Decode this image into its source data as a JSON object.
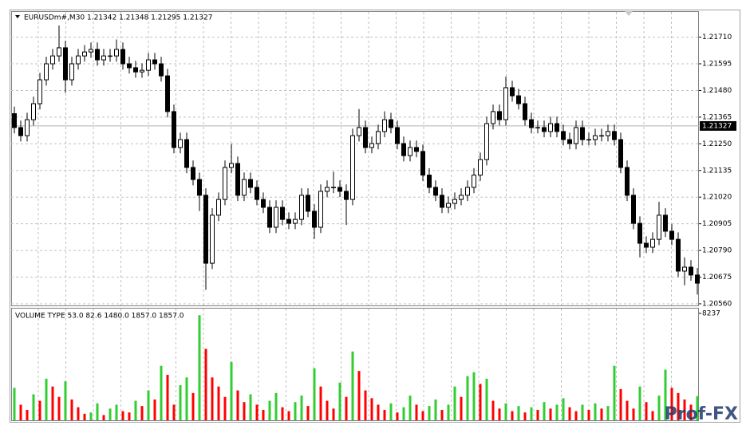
{
  "chart_data": [
    {
      "type": "candlestick",
      "title": "EURUSDm#,M30  1.21342 1.21348 1.21295 1.21327",
      "open": [
        1.2138,
        1.2132,
        1.21285,
        1.21354,
        1.21423,
        1.21526,
        1.21595,
        1.21629,
        1.21664,
        1.21526,
        1.21595,
        1.21629,
        1.21646,
        1.21657,
        1.21612,
        1.21629,
        1.21629,
        1.21657,
        1.21595,
        1.21578,
        1.2156,
        1.21567,
        1.21612,
        1.21595,
        1.21543,
        1.21389,
        1.21234,
        1.21268,
        1.21148,
        1.21096,
        1.21028,
        1.20735,
        1.20942,
        1.2101,
        1.21148,
        1.21165,
        1.21028,
        1.21096,
        1.21062,
        1.2101,
        1.20976,
        1.2089,
        1.20976,
        1.20924,
        1.20907,
        1.20924,
        1.21028,
        1.20959,
        1.2089,
        1.21045,
        1.21062,
        1.21062,
        1.21045,
        1.2101,
        1.21285,
        1.2132,
        1.21234,
        1.21251,
        1.21303,
        1.21354,
        1.2132,
        1.21251,
        1.21199,
        1.21234,
        1.21217,
        1.21115,
        1.21062,
        1.21028,
        1.20976,
        1.20993,
        1.2101,
        1.21028,
        1.21062,
        1.21115,
        1.21182,
        1.21337,
        1.21389,
        1.21354,
        1.21492,
        1.21457,
        1.21423,
        1.21354,
        1.2132,
        1.2132,
        1.21303,
        1.21337,
        1.21303,
        1.21268,
        1.21251,
        1.2132,
        1.21268,
        1.21268,
        1.21285,
        1.21285,
        1.21303,
        1.21268,
        1.21148,
        1.21028,
        1.20907,
        1.20821,
        1.20804,
        1.20838,
        1.20942,
        1.20873,
        1.20838,
        1.20701,
        1.20718,
        1.20684
      ],
      "high": [
        1.2141,
        1.2135,
        1.21384,
        1.21453,
        1.21556,
        1.21625,
        1.21659,
        1.2176,
        1.21694,
        1.21625,
        1.21659,
        1.21676,
        1.21687,
        1.21687,
        1.21659,
        1.21659,
        1.217,
        1.21687,
        1.21625,
        1.21608,
        1.21597,
        1.21642,
        1.21642,
        1.21625,
        1.21573,
        1.21419,
        1.21298,
        1.21298,
        1.21178,
        1.21126,
        1.21058,
        1.20972,
        1.2104,
        1.21178,
        1.2125,
        1.21195,
        1.21126,
        1.21126,
        1.21092,
        1.2104,
        1.21006,
        1.21006,
        1.21006,
        1.20954,
        1.20954,
        1.21058,
        1.21058,
        1.20989,
        1.21075,
        1.21092,
        1.2113,
        1.21092,
        1.21075,
        1.21315,
        1.214,
        1.2135,
        1.21281,
        1.21333,
        1.2139,
        1.21384,
        1.2135,
        1.21281,
        1.21264,
        1.21264,
        1.21247,
        1.21145,
        1.21092,
        1.21058,
        1.21023,
        1.2104,
        1.21058,
        1.21092,
        1.21145,
        1.21212,
        1.21367,
        1.21419,
        1.21419,
        1.2154,
        1.21522,
        1.21487,
        1.21453,
        1.21384,
        1.2135,
        1.2135,
        1.21367,
        1.21367,
        1.21333,
        1.21298,
        1.2135,
        1.2135,
        1.21298,
        1.21315,
        1.21315,
        1.21333,
        1.21333,
        1.21298,
        1.21178,
        1.21058,
        1.20937,
        1.20851,
        1.20868,
        1.21,
        1.20972,
        1.20903,
        1.20868,
        1.2076,
        1.20748,
        1.20714
      ],
      "low": [
        1.21295,
        1.2126,
        1.2126,
        1.21329,
        1.21398,
        1.21501,
        1.2157,
        1.21604,
        1.2147,
        1.21501,
        1.2157,
        1.21604,
        1.21621,
        1.21587,
        1.21587,
        1.21604,
        1.21604,
        1.2157,
        1.21553,
        1.21535,
        1.21535,
        1.21542,
        1.2157,
        1.21518,
        1.21364,
        1.21209,
        1.21209,
        1.21123,
        1.21071,
        1.2096,
        1.2062,
        1.2071,
        1.20917,
        1.20985,
        1.21123,
        1.21003,
        1.21003,
        1.21037,
        1.20985,
        1.20951,
        1.20865,
        1.20865,
        1.20899,
        1.20882,
        1.20882,
        1.20899,
        1.20934,
        1.2084,
        1.20865,
        1.2102,
        1.21037,
        1.2102,
        1.209,
        1.20985,
        1.2126,
        1.21209,
        1.21209,
        1.21226,
        1.21278,
        1.21295,
        1.21226,
        1.21174,
        1.21174,
        1.21192,
        1.2109,
        1.21037,
        1.21003,
        1.20951,
        1.20951,
        1.20968,
        1.20985,
        1.21003,
        1.21037,
        1.2109,
        1.21157,
        1.21312,
        1.21329,
        1.21329,
        1.21432,
        1.21398,
        1.21329,
        1.21295,
        1.21295,
        1.21278,
        1.21278,
        1.21278,
        1.21243,
        1.21226,
        1.21226,
        1.21243,
        1.21243,
        1.21243,
        1.2126,
        1.2126,
        1.21243,
        1.21123,
        1.21003,
        1.20882,
        1.2076,
        1.20779,
        1.20779,
        1.20813,
        1.20848,
        1.20813,
        1.20676,
        1.2064,
        1.20659,
        1.206
      ],
      "close": [
        1.2132,
        1.21285,
        1.21354,
        1.21423,
        1.21526,
        1.21595,
        1.21629,
        1.21664,
        1.21526,
        1.21595,
        1.21629,
        1.21646,
        1.21657,
        1.21612,
        1.21629,
        1.21629,
        1.21657,
        1.21595,
        1.21578,
        1.2156,
        1.21567,
        1.21612,
        1.21595,
        1.21543,
        1.21389,
        1.21234,
        1.21268,
        1.21148,
        1.21096,
        1.21028,
        1.20735,
        1.20942,
        1.2101,
        1.21148,
        1.21165,
        1.21028,
        1.21096,
        1.21062,
        1.2101,
        1.20976,
        1.2089,
        1.20976,
        1.20924,
        1.20907,
        1.20924,
        1.21028,
        1.20959,
        1.2089,
        1.21045,
        1.21062,
        1.21062,
        1.21045,
        1.2101,
        1.21285,
        1.2132,
        1.21234,
        1.21251,
        1.21303,
        1.21354,
        1.2132,
        1.21251,
        1.21199,
        1.21234,
        1.21217,
        1.21115,
        1.21062,
        1.21028,
        1.20976,
        1.20993,
        1.2101,
        1.21028,
        1.21062,
        1.21115,
        1.21182,
        1.21337,
        1.21389,
        1.21354,
        1.21492,
        1.21457,
        1.21423,
        1.21354,
        1.2132,
        1.2132,
        1.21303,
        1.21337,
        1.21303,
        1.21268,
        1.21251,
        1.2132,
        1.21268,
        1.21268,
        1.21285,
        1.21285,
        1.21303,
        1.21268,
        1.21148,
        1.21028,
        1.20907,
        1.20821,
        1.20804,
        1.20838,
        1.20942,
        1.20873,
        1.20838,
        1.20701,
        1.20718,
        1.20684,
        1.20649
      ],
      "up_color": "#ffffff",
      "down_color": "#000000",
      "outline_color": "#000000",
      "ylim": [
        1.20553,
        1.21822
      ],
      "yticks": [
        {
          "value": 1.2171,
          "label": "1.21710"
        },
        1.21595,
        {
          "value": 1.2148,
          "label": "1.21480"
        },
        1.21365,
        {
          "value": 1.2125,
          "label": "1.21250"
        },
        1.21135,
        {
          "value": 1.2102,
          "label": "1.21020"
        },
        1.20905,
        {
          "value": 1.2079,
          "label": "1.20790"
        },
        1.20675,
        {
          "value": 1.2056,
          "label": "1.20560"
        }
      ],
      "current_price": 1.21327,
      "grid": true
    },
    {
      "type": "bar",
      "title": "VOLUME TYPE 53.0 82.6 1480.0 1857.0 1857.0",
      "values": [
        2500,
        1200,
        800,
        2000,
        1500,
        3200,
        2600,
        1800,
        3000,
        1600,
        1000,
        500,
        600,
        1300,
        400,
        900,
        1200,
        700,
        600,
        1500,
        1100,
        2300,
        1600,
        4200,
        3500,
        1200,
        2700,
        3300,
        2100,
        8100,
        5500,
        3300,
        2600,
        1800,
        4500,
        2300,
        1400,
        2000,
        1200,
        800,
        1500,
        2100,
        1000,
        700,
        1400,
        1900,
        1100,
        4000,
        2600,
        1500,
        900,
        2900,
        1800,
        5300,
        3800,
        2300,
        1700,
        1200,
        800,
        1300,
        600,
        1000,
        1900,
        1200,
        700,
        1100,
        1600,
        800,
        1200,
        2600,
        1800,
        3400,
        3700,
        2800,
        3200,
        1500,
        900,
        1300,
        700,
        1100,
        600,
        1000,
        800,
        1400,
        900,
        1200,
        1700,
        1000,
        700,
        1200,
        800,
        1300,
        900,
        1100,
        4200,
        2400,
        1500,
        900,
        2600,
        1400,
        700,
        1900,
        3900,
        2500,
        2100,
        1600,
        1200,
        1857
      ],
      "up_color": "#32cd32",
      "down_color": "#ff0000",
      "ylim": [
        0,
        8237
      ],
      "yticks": [
        8237
      ],
      "grid": true
    }
  ],
  "watermark": "Prof-FX"
}
